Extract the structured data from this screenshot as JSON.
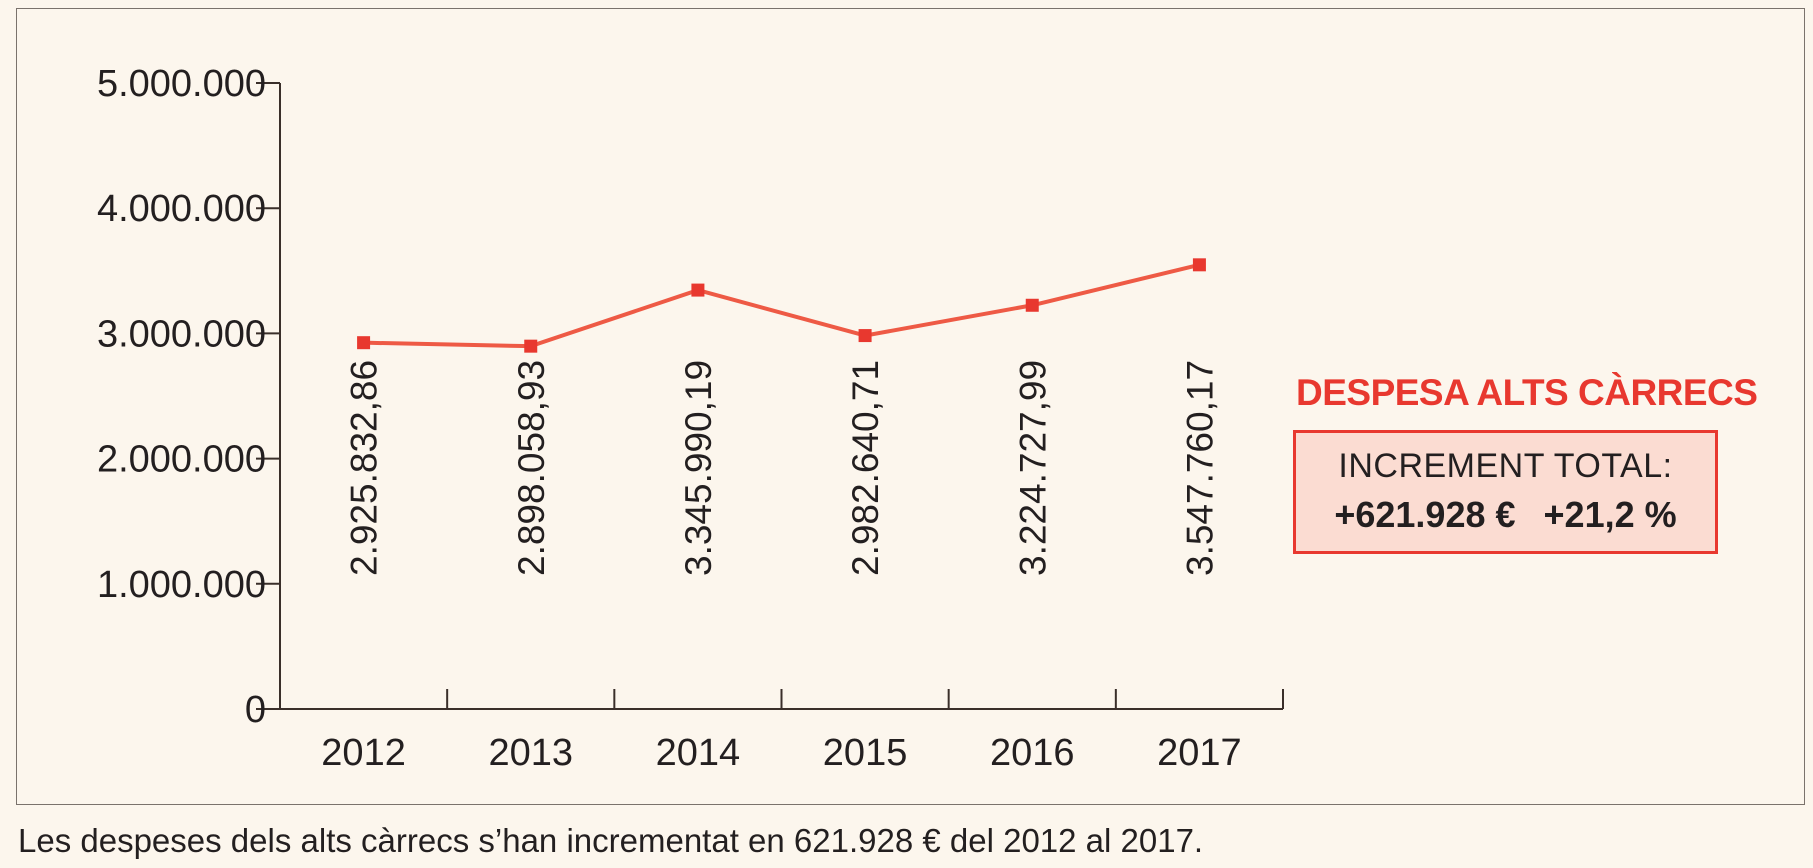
{
  "chart_data": {
    "type": "line",
    "categories": [
      "2012",
      "2013",
      "2014",
      "2015",
      "2016",
      "2017"
    ],
    "series": [
      {
        "values": [
          2925832.86,
          2898058.93,
          3345990.19,
          2982640.71,
          3224727.99,
          3547760.17
        ]
      }
    ],
    "data_labels": [
      "2.925.832,86",
      "2.898.058,93",
      "3.345.990,19",
      "2.982.640,71",
      "3.224.727,99",
      "3.547.760,17"
    ],
    "y_ticks": [
      0,
      1000000,
      2000000,
      3000000,
      4000000,
      5000000
    ],
    "y_tick_labels": [
      "0",
      "1.000.000",
      "2.000.000",
      "3.000.000",
      "4.000.000",
      "5.000.000"
    ],
    "ylim": [
      0,
      5000000
    ],
    "grid": false,
    "line_color": "#ee5a45",
    "marker_color": "#e8382f"
  },
  "side_panel": {
    "title": "DESPESA ALTS CÀRRECS",
    "box_label": "INCREMENT  TOTAL:",
    "increment_amount": "+621.928 €",
    "increment_percent": "+21,2 %",
    "accent_color": "#e8382f",
    "box_fill": "#fbdcd2"
  },
  "caption": "Les despeses dels alts càrrecs s’han incrementat en 621.928 € del 2012 al 2017."
}
